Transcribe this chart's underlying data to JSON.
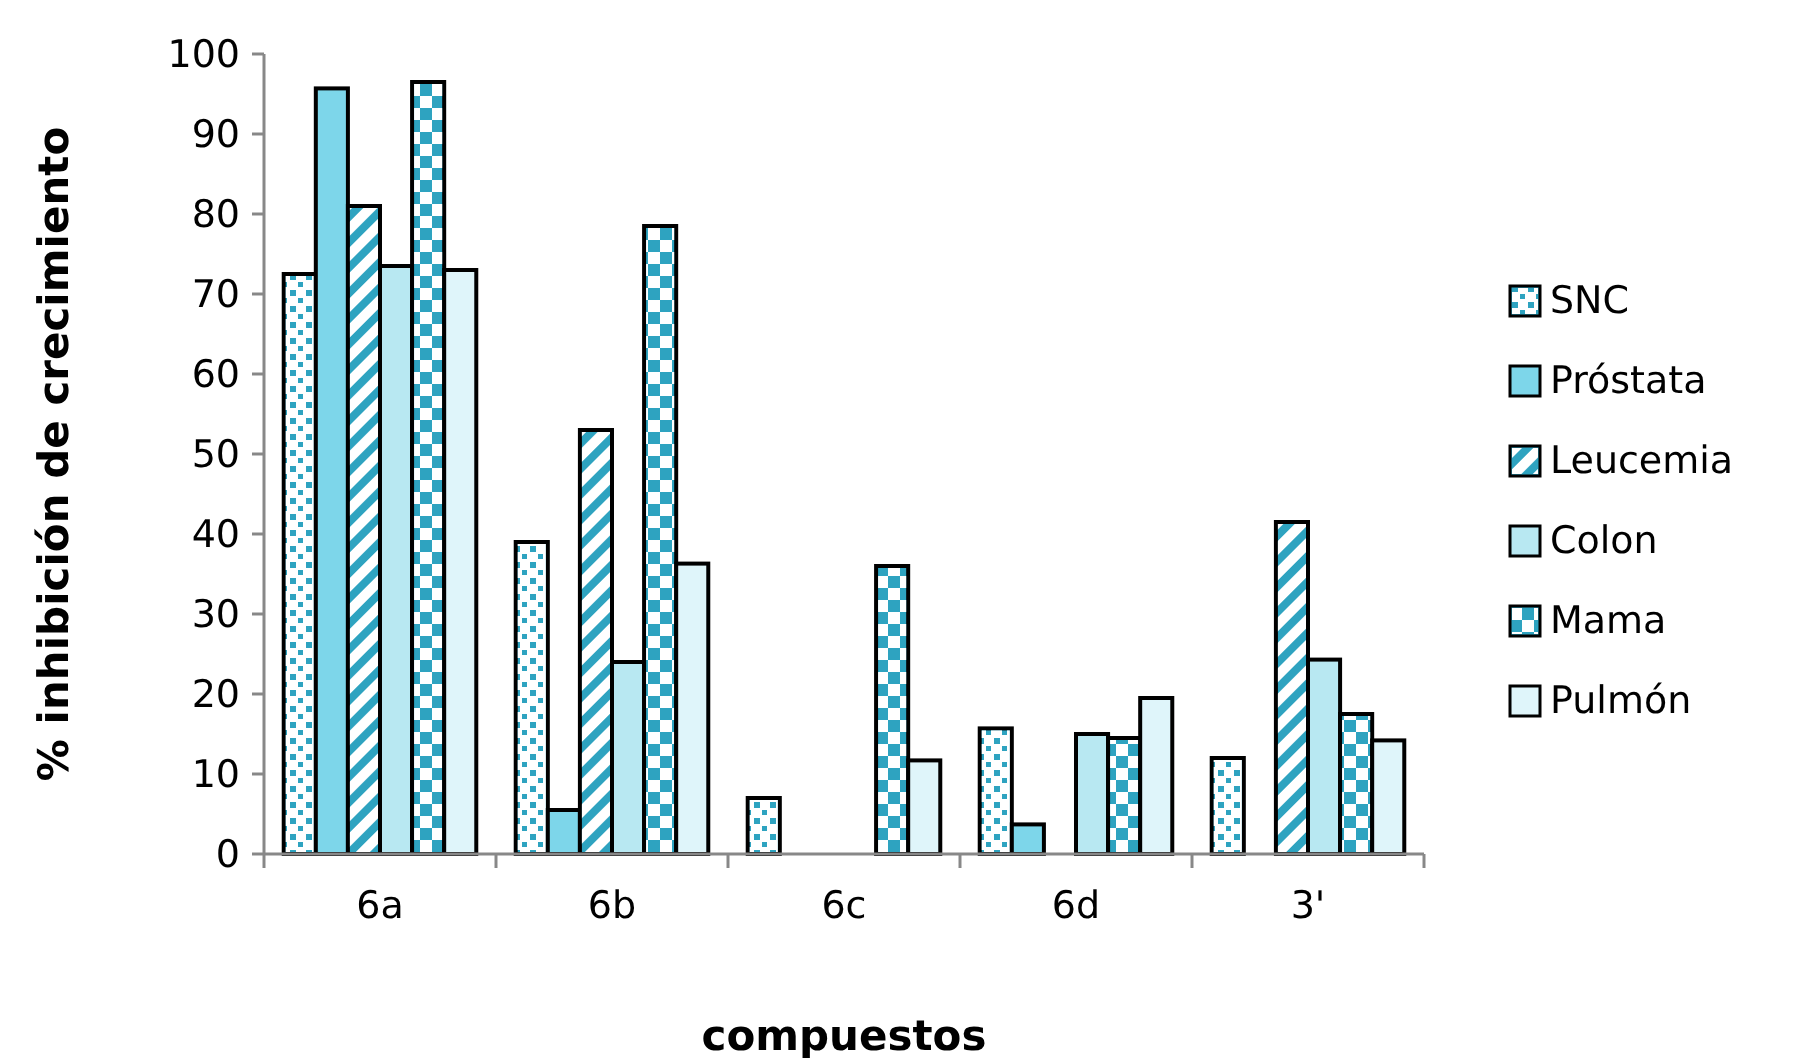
{
  "chart_data": {
    "type": "bar",
    "xlabel": "compuestos",
    "ylabel": "% inhibición de crecimiento",
    "categories": [
      "6a",
      "6b",
      "6c",
      "6d",
      "3'"
    ],
    "series": [
      {
        "name": "SNC",
        "color": "#2ea3c0",
        "values": [
          72.5,
          39,
          7,
          15.7,
          12
        ]
      },
      {
        "name": "Próstata",
        "color": "#7dd6ea",
        "values": [
          95.7,
          5.5,
          null,
          3.7,
          null
        ]
      },
      {
        "name": "Leucemia",
        "color": "#2ea3c0",
        "values": [
          81,
          53,
          null,
          null,
          41.5
        ]
      },
      {
        "name": "Colon",
        "color": "#b8e8f2",
        "values": [
          73.5,
          24,
          null,
          15,
          24.3
        ]
      },
      {
        "name": "Mama",
        "color": "#2ea3c0",
        "values": [
          96.5,
          78.5,
          36,
          14.5,
          17.5
        ]
      },
      {
        "name": "Pulmón",
        "color": "#dff5fa",
        "values": [
          73,
          36.3,
          11.7,
          19.5,
          14.2
        ]
      }
    ],
    "ylim": [
      0,
      100
    ],
    "yticks": [
      0,
      10,
      20,
      30,
      40,
      50,
      60,
      70,
      80,
      90,
      100
    ],
    "grid": false,
    "legend": "right"
  }
}
